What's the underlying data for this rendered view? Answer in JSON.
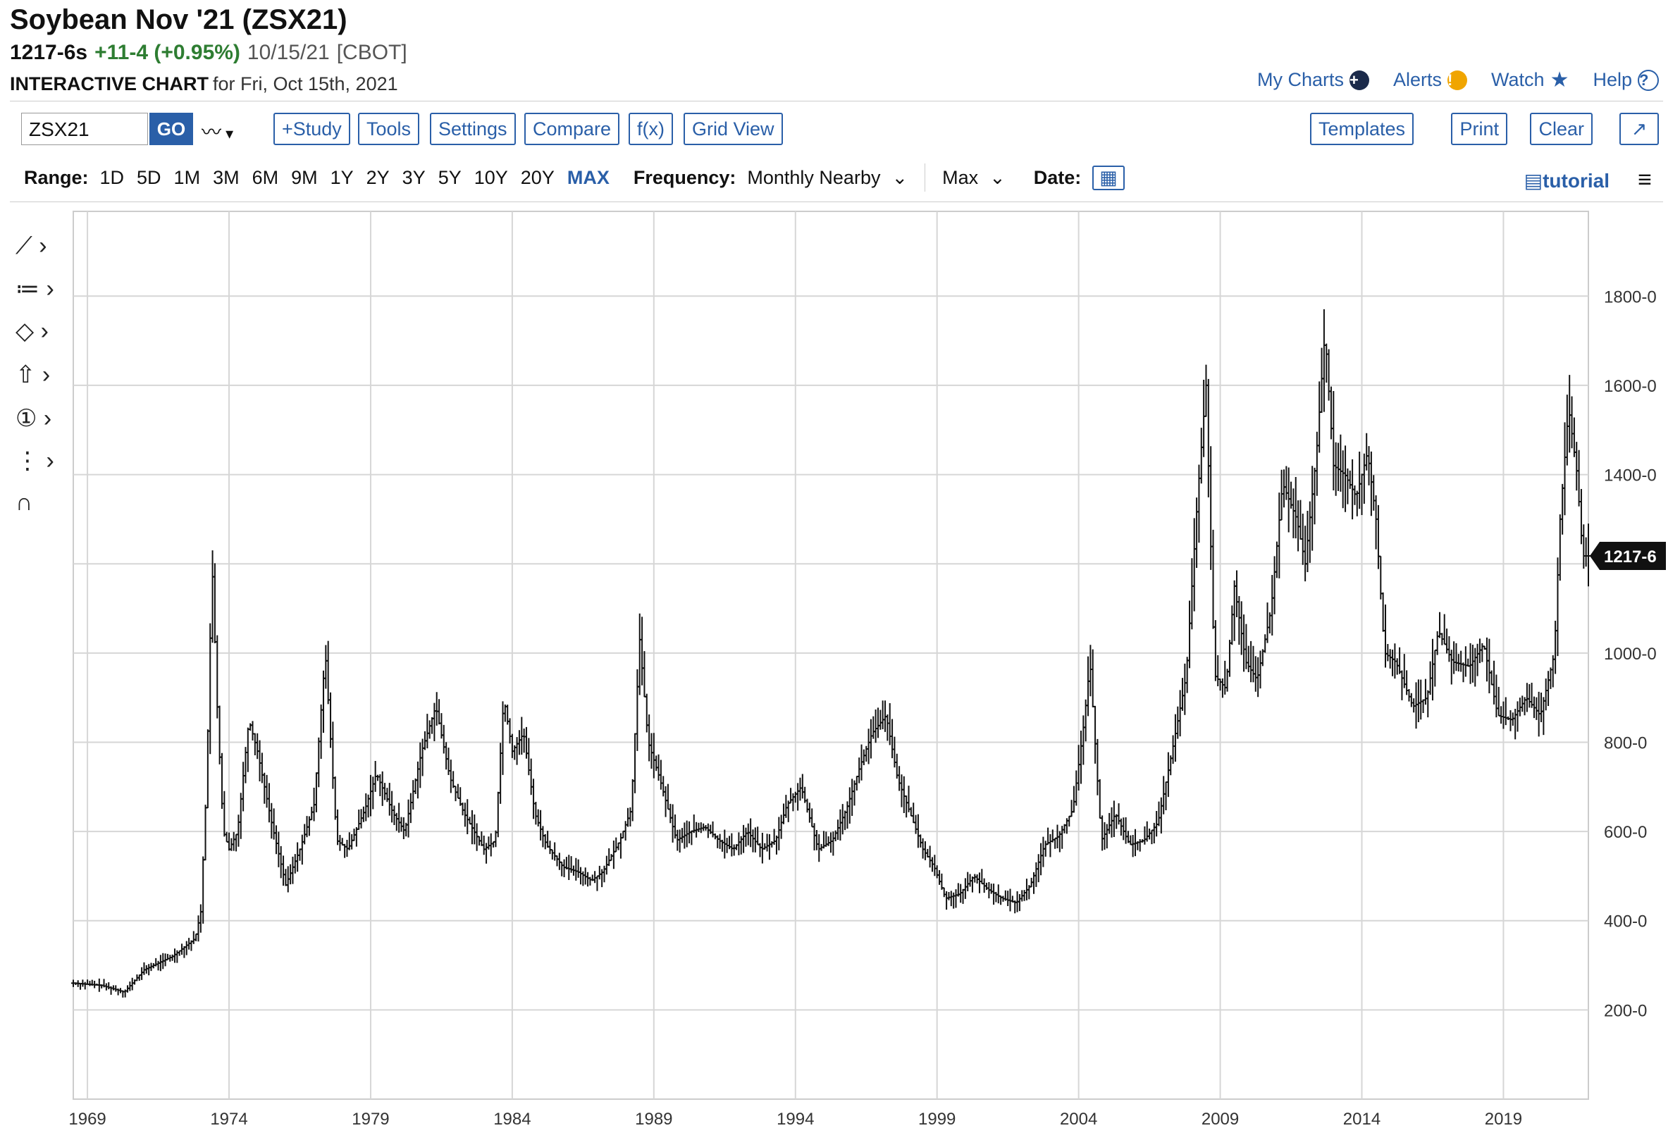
{
  "header": {
    "title": "Soybean Nov '21 (ZSX21)",
    "last": "1217-6s",
    "change": "+11-4 (+0.95%)",
    "date": "10/15/21",
    "exchange": "[CBOT]",
    "chart_label": "INTERACTIVE CHART",
    "chart_sub": "for Fri, Oct 15th, 2021"
  },
  "toplinks": {
    "my_charts": "My Charts",
    "alerts": "Alerts",
    "watch": "Watch",
    "help": "Help"
  },
  "toolbar": {
    "symbol": "ZSX21",
    "go": "GO",
    "study": "+Study",
    "tools": "Tools",
    "settings": "Settings",
    "compare": "Compare",
    "fx": "f(x)",
    "grid_view": "Grid View",
    "templates": "Templates",
    "print": "Print",
    "clear": "Clear"
  },
  "rangebar": {
    "range_label": "Range:",
    "ranges": [
      "1D",
      "5D",
      "1M",
      "3M",
      "6M",
      "9M",
      "1Y",
      "2Y",
      "3Y",
      "5Y",
      "10Y",
      "20Y",
      "MAX"
    ],
    "active": "MAX",
    "frequency_label": "Frequency:",
    "frequency": "Monthly Nearby",
    "max_select": "Max",
    "date_label": "Date:",
    "tutorial": "tutorial"
  },
  "colors": {
    "accent": "#2a5fa8",
    "up": "#2e7d32",
    "bars": "#111111"
  },
  "chart_data": {
    "type": "bar",
    "style": "OHLC monthly bars",
    "x_tick_labels": [
      "1969",
      "1974",
      "1979",
      "1984",
      "1989",
      "1994",
      "1999",
      "2004",
      "2009",
      "2014",
      "2019"
    ],
    "y_tick_labels": [
      "200-0",
      "400-0",
      "600-0",
      "800-0",
      "1000-0",
      "1400-0",
      "1600-0",
      "1800-0"
    ],
    "ylim": [
      0,
      1990
    ],
    "xlim": [
      1968.5,
      2022.0
    ],
    "last_price_label": "1217-6",
    "last_price": 1217.75,
    "grid": true,
    "series": [
      {
        "points": [
          [
            1968.5,
            260
          ],
          [
            1969.5,
            255
          ],
          [
            1970.3,
            240
          ],
          [
            1971.0,
            290
          ],
          [
            1972.0,
            320
          ],
          [
            1972.8,
            360
          ],
          [
            1973.0,
            420
          ],
          [
            1973.2,
            700
          ],
          [
            1973.4,
            1200
          ],
          [
            1973.6,
            850
          ],
          [
            1973.8,
            600
          ],
          [
            1974.0,
            560
          ],
          [
            1974.3,
            600
          ],
          [
            1974.7,
            850
          ],
          [
            1975.0,
            780
          ],
          [
            1975.5,
            620
          ],
          [
            1976.0,
            480
          ],
          [
            1976.5,
            560
          ],
          [
            1977.0,
            660
          ],
          [
            1977.4,
            1000
          ],
          [
            1977.8,
            580
          ],
          [
            1978.2,
            560
          ],
          [
            1978.8,
            650
          ],
          [
            1979.2,
            730
          ],
          [
            1979.8,
            640
          ],
          [
            1980.2,
            600
          ],
          [
            1980.8,
            780
          ],
          [
            1981.3,
            880
          ],
          [
            1981.8,
            720
          ],
          [
            1982.3,
            640
          ],
          [
            1983.0,
            560
          ],
          [
            1983.4,
            580
          ],
          [
            1983.7,
            900
          ],
          [
            1984.0,
            780
          ],
          [
            1984.4,
            820
          ],
          [
            1984.8,
            640
          ],
          [
            1985.2,
            570
          ],
          [
            1985.8,
            520
          ],
          [
            1986.3,
            510
          ],
          [
            1986.8,
            490
          ],
          [
            1987.2,
            510
          ],
          [
            1987.8,
            580
          ],
          [
            1988.2,
            650
          ],
          [
            1988.5,
            1030
          ],
          [
            1988.8,
            800
          ],
          [
            1989.2,
            720
          ],
          [
            1989.8,
            580
          ],
          [
            1990.3,
            600
          ],
          [
            1990.8,
            610
          ],
          [
            1991.3,
            580
          ],
          [
            1991.8,
            560
          ],
          [
            1992.3,
            600
          ],
          [
            1992.8,
            560
          ],
          [
            1993.3,
            580
          ],
          [
            1993.7,
            660
          ],
          [
            1994.2,
            700
          ],
          [
            1994.8,
            560
          ],
          [
            1995.3,
            580
          ],
          [
            1995.8,
            650
          ],
          [
            1996.3,
            750
          ],
          [
            1996.7,
            820
          ],
          [
            1997.2,
            860
          ],
          [
            1997.6,
            720
          ],
          [
            1998.0,
            650
          ],
          [
            1998.5,
            560
          ],
          [
            1998.9,
            520
          ],
          [
            1999.3,
            450
          ],
          [
            1999.8,
            460
          ],
          [
            2000.3,
            500
          ],
          [
            2000.8,
            470
          ],
          [
            2001.3,
            450
          ],
          [
            2001.8,
            440
          ],
          [
            2002.3,
            480
          ],
          [
            2002.8,
            570
          ],
          [
            2003.3,
            590
          ],
          [
            2003.8,
            650
          ],
          [
            2004.2,
            850
          ],
          [
            2004.4,
            980
          ],
          [
            2004.8,
            580
          ],
          [
            2005.3,
            640
          ],
          [
            2005.8,
            570
          ],
          [
            2006.3,
            580
          ],
          [
            2006.8,
            620
          ],
          [
            2007.3,
            780
          ],
          [
            2007.8,
            950
          ],
          [
            2008.2,
            1350
          ],
          [
            2008.5,
            1600
          ],
          [
            2008.8,
            950
          ],
          [
            2009.2,
            920
          ],
          [
            2009.5,
            1150
          ],
          [
            2009.9,
            980
          ],
          [
            2010.3,
            940
          ],
          [
            2010.8,
            1100
          ],
          [
            2011.2,
            1380
          ],
          [
            2011.7,
            1300
          ],
          [
            2012.0,
            1200
          ],
          [
            2012.4,
            1450
          ],
          [
            2012.7,
            1720
          ],
          [
            2013.0,
            1420
          ],
          [
            2013.4,
            1400
          ],
          [
            2013.8,
            1350
          ],
          [
            2014.2,
            1450
          ],
          [
            2014.5,
            1300
          ],
          [
            2014.8,
            1000
          ],
          [
            2015.2,
            980
          ],
          [
            2015.8,
            880
          ],
          [
            2016.3,
            900
          ],
          [
            2016.7,
            1050
          ],
          [
            2017.2,
            980
          ],
          [
            2017.8,
            970
          ],
          [
            2018.3,
            1020
          ],
          [
            2018.8,
            860
          ],
          [
            2019.3,
            850
          ],
          [
            2019.8,
            900
          ],
          [
            2020.3,
            860
          ],
          [
            2020.8,
            1000
          ],
          [
            2021.0,
            1300
          ],
          [
            2021.3,
            1550
          ],
          [
            2021.6,
            1400
          ],
          [
            2021.8,
            1217.75
          ]
        ]
      }
    ]
  }
}
